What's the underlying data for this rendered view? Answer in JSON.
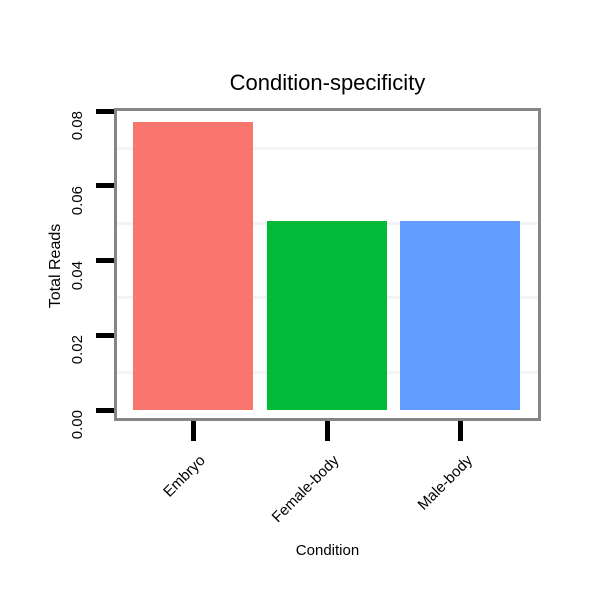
{
  "chart_data": {
    "type": "bar",
    "title": "Condition-specificity",
    "xlabel": "Condition",
    "ylabel": "Total Reads",
    "categories": [
      "Embryo",
      "Female-body",
      "Male-body"
    ],
    "values": [
      0.077,
      0.0505,
      0.0505
    ],
    "bar_colors": [
      "#F8766D",
      "#00BA38",
      "#619CFF"
    ],
    "ylim": [
      0,
      0.08
    ],
    "ytick_values": [
      0,
      0.02,
      0.04,
      0.06,
      0.08
    ],
    "ytick_labels": [
      "0.00",
      "0.02",
      "0.04",
      "0.06",
      "0.08"
    ],
    "minor_gridline_values": [
      0.01,
      0.03,
      0.05,
      0.07
    ],
    "grid": "horizontal-minor-only",
    "legend": "none",
    "colors": {
      "gridline": "#F4F4F4",
      "panel_border": "#858585",
      "tick": "#000000",
      "text": "#000000",
      "background": "#FFFFFF"
    }
  }
}
